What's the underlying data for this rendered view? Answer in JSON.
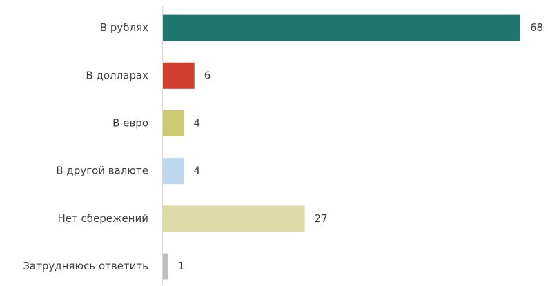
{
  "chart_data": {
    "type": "barh",
    "categories": [
      "В рублях",
      "В долларах",
      "В евро",
      "В другой валюте",
      "Нет сбережений",
      "Затрудняюсь ответить"
    ],
    "values": [
      68,
      6,
      4,
      4,
      27,
      1
    ],
    "colors": [
      "#1e7770",
      "#d13f30",
      "#cdc872",
      "#bdd7ee",
      "#dedba9",
      "#bfbfbf"
    ]
  }
}
